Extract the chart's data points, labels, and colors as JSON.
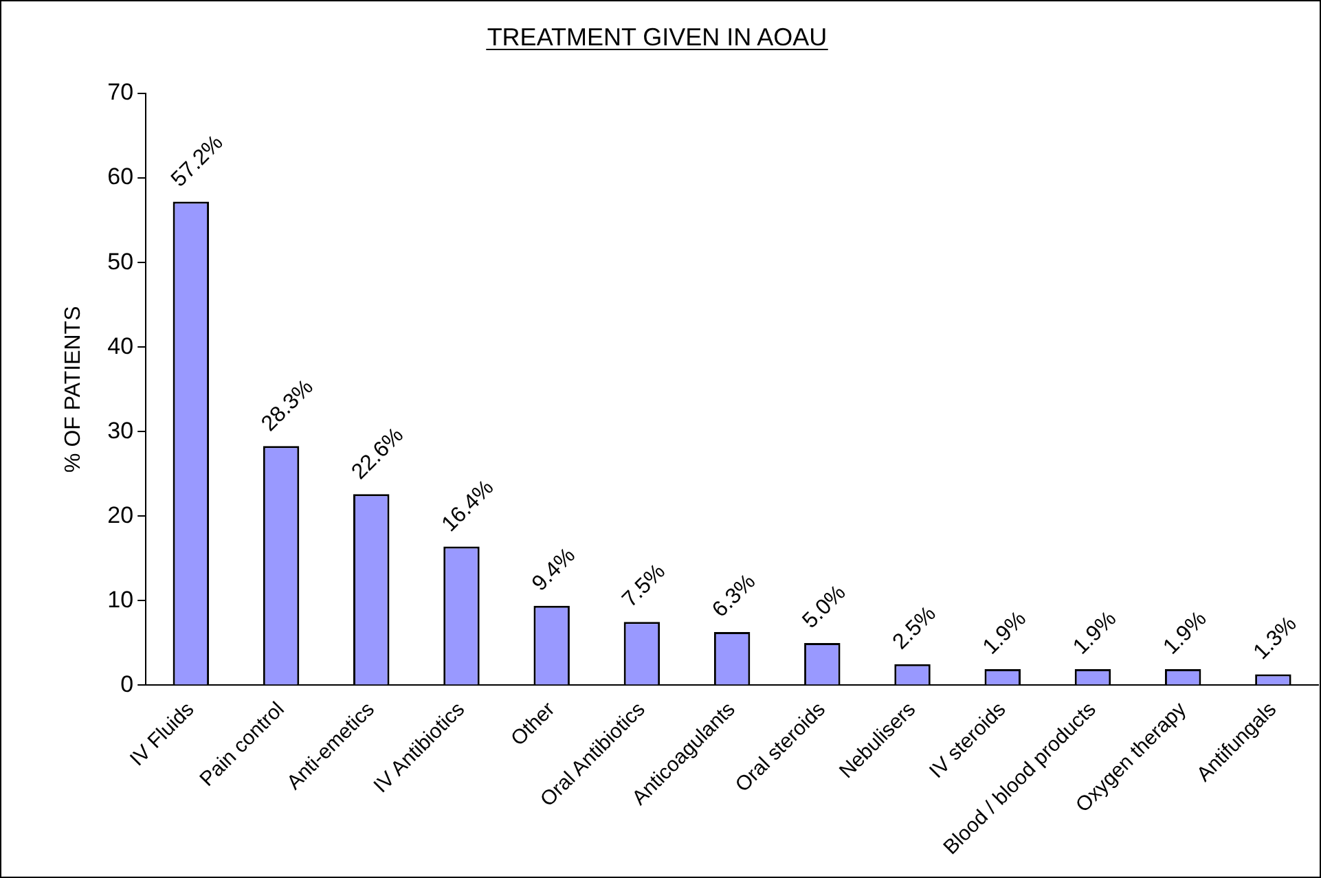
{
  "chart_data": {
    "type": "bar",
    "title": "TREATMENT GIVEN IN AOAU",
    "ylabel": "% OF PATIENTS",
    "categories": [
      "IV Fluids",
      "Pain control",
      "Anti-emetics",
      "IV Antibiotics",
      "Other",
      "Oral Antibiotics",
      "Anticoagulants",
      "Oral steroids",
      "Nebulisers",
      "IV steroids",
      "Blood / blood products",
      "Oxygen therapy",
      "Antifungals"
    ],
    "values": [
      57.2,
      28.3,
      22.6,
      16.4,
      9.4,
      7.5,
      6.3,
      5.0,
      2.5,
      1.9,
      1.9,
      1.9,
      1.3
    ],
    "value_labels": [
      "57.2%",
      "28.3%",
      "22.6%",
      "16.4%",
      "9.4%",
      "7.5%",
      "6.3%",
      "5.0%",
      "2.5%",
      "1.9%",
      "1.9%",
      "1.9%",
      "1.3%"
    ],
    "color": "#9999ff",
    "ylim": [
      0,
      70
    ],
    "yticks": [
      0,
      10,
      20,
      30,
      40,
      50,
      60,
      70
    ],
    "grid": false,
    "legend": false
  }
}
